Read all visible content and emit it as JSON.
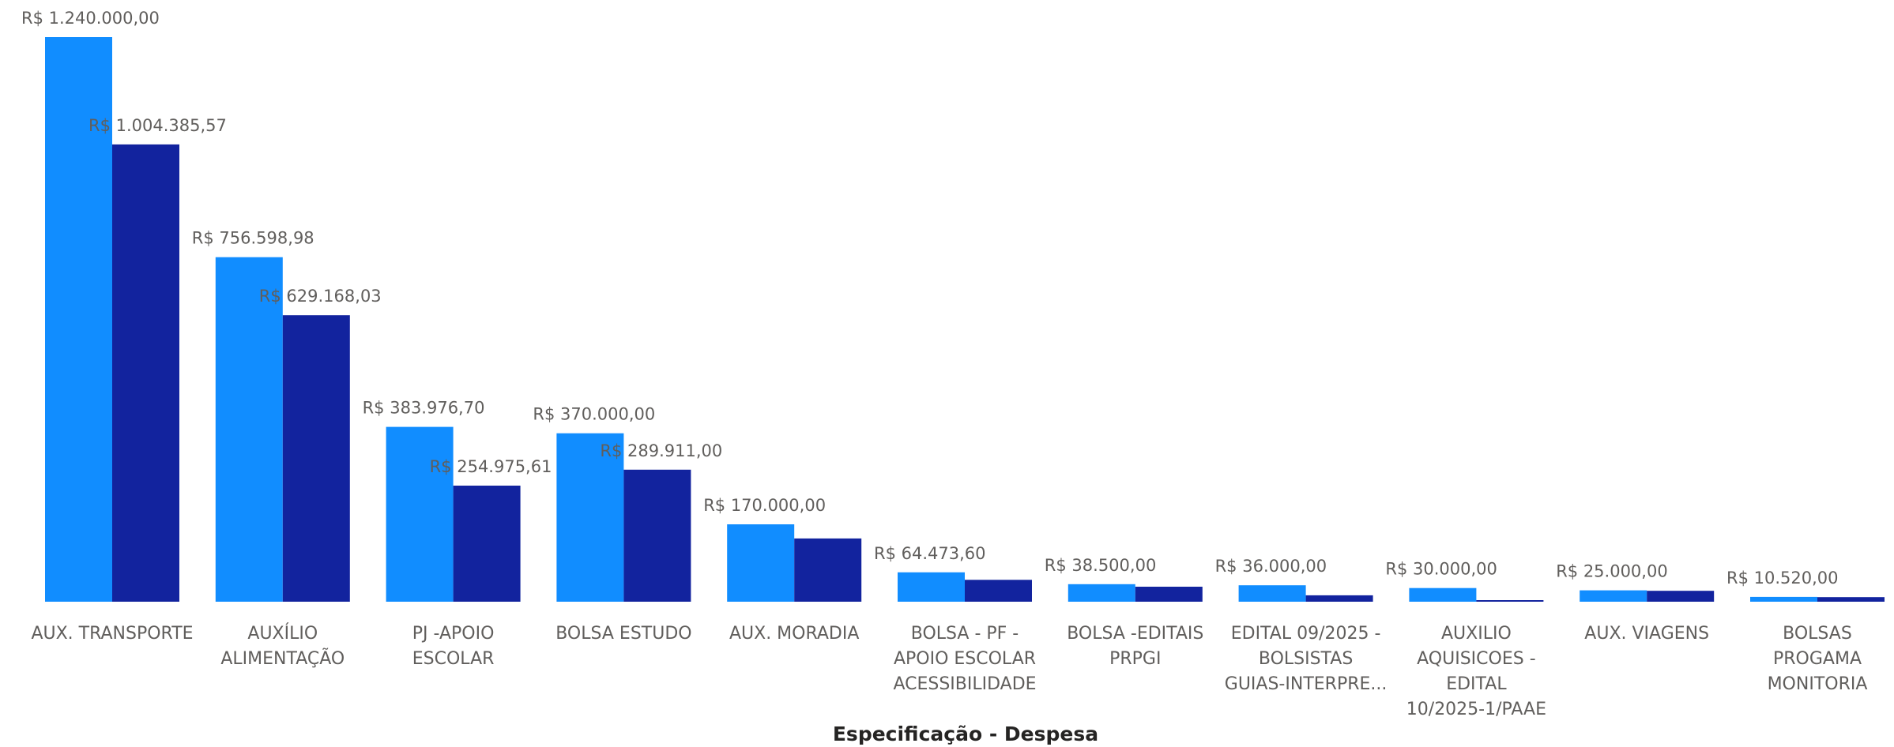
{
  "chart_data": {
    "type": "bar",
    "xlabel": "Especificação - Despesa",
    "categories": [
      [
        "AUX. TRANSPORTE"
      ],
      [
        "AUXÍLIO",
        "ALIMENTAÇÃO"
      ],
      [
        "PJ -APOIO",
        "ESCOLAR"
      ],
      [
        "BOLSA ESTUDO"
      ],
      [
        "AUX. MORADIA"
      ],
      [
        "BOLSA - PF -",
        "APOIO ESCOLAR",
        "ACESSIBILIDADE"
      ],
      [
        "BOLSA -EDITAIS",
        "PRPGI"
      ],
      [
        "EDITAL 09/2025 -",
        "BOLSISTAS",
        "GUIAS-INTERPRE..."
      ],
      [
        "AUXILIO",
        "AQUISICOES -",
        "EDITAL",
        "10/2025-1/PAAE"
      ],
      [
        "AUX. VIAGENS"
      ],
      [
        "BOLSAS",
        "PROGAMA",
        "MONITORIA"
      ]
    ],
    "series": [
      {
        "color": "#118dff",
        "values": [
          1240000.0,
          756598.98,
          383976.7,
          370000.0,
          170000.0,
          64473.6,
          38500.0,
          36000.0,
          30000.0,
          25000.0,
          10520.0
        ],
        "labels": [
          "R$ 1.240.000,00",
          "R$ 756.598,98",
          "R$ 383.976,70",
          "R$ 370.000,00",
          "R$ 170.000,00",
          "R$ 64.473,60",
          "R$ 38.500,00",
          "R$ 36.000,00",
          "R$ 30.000,00",
          "R$ 25.000,00",
          "R$ 10.520,00"
        ]
      },
      {
        "color": "#12239e",
        "values": [
          1004385.57,
          629168.03,
          254975.61,
          289911.0,
          139000,
          48000,
          33000,
          14000,
          3000,
          24000,
          10000
        ],
        "labels": [
          "R$ 1.004.385,57",
          "R$ 629.168,03",
          "R$ 254.975,61",
          "R$ 289.911,00",
          "",
          "",
          "",
          "",
          "",
          "",
          ""
        ]
      }
    ],
    "ylim": [
      0,
      1240000
    ],
    "grid": false,
    "legend": "none"
  }
}
